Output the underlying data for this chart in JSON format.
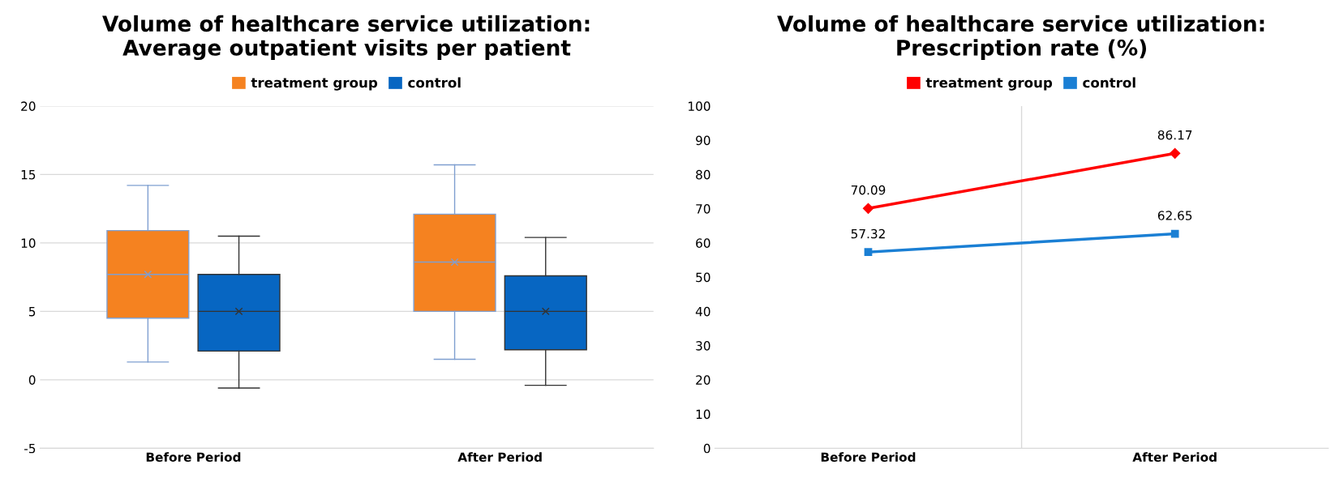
{
  "chart_data": [
    {
      "type": "box",
      "title": "Volume of healthcare service utilization:\nAverage outpatient visits per patient",
      "categories": [
        "Before Period",
        "After Period"
      ],
      "ylim": [
        -5,
        20
      ],
      "yticks": [
        -5,
        0,
        5,
        10,
        15,
        20
      ],
      "grid": "y",
      "legend": "top",
      "series": [
        {
          "name": "treatment group",
          "color": "#f58220",
          "boxes": [
            {
              "low": 1.3,
              "q1": 4.5,
              "median": 7.7,
              "q3": 10.9,
              "high": 14.2,
              "mean": 7.7
            },
            {
              "low": 1.5,
              "q1": 5.0,
              "median": 8.6,
              "q3": 12.1,
              "high": 15.7,
              "mean": 8.6
            }
          ]
        },
        {
          "name": "control",
          "color": "#0766c2",
          "boxes": [
            {
              "low": -0.6,
              "q1": 2.1,
              "median": 5.0,
              "q3": 7.7,
              "high": 10.5,
              "mean": 5.0
            },
            {
              "low": -0.4,
              "q1": 2.2,
              "median": 5.0,
              "q3": 7.6,
              "high": 10.4,
              "mean": 5.0
            }
          ]
        }
      ]
    },
    {
      "type": "line",
      "title": "Volume of healthcare service utilization:\nPrescription rate (%)",
      "categories": [
        "Before Period",
        "After Period"
      ],
      "ylim": [
        0,
        100
      ],
      "yticks": [
        0,
        10,
        20,
        30,
        40,
        50,
        60,
        70,
        80,
        90,
        100
      ],
      "grid": "x",
      "legend": "top",
      "data_labels": true,
      "series": [
        {
          "name": "treatment group",
          "color": "#ff0000",
          "marker": "diamond",
          "values": [
            70.09,
            86.17
          ]
        },
        {
          "name": "control",
          "color": "#1a7fd4",
          "marker": "square",
          "values": [
            57.32,
            62.65
          ]
        }
      ]
    }
  ]
}
